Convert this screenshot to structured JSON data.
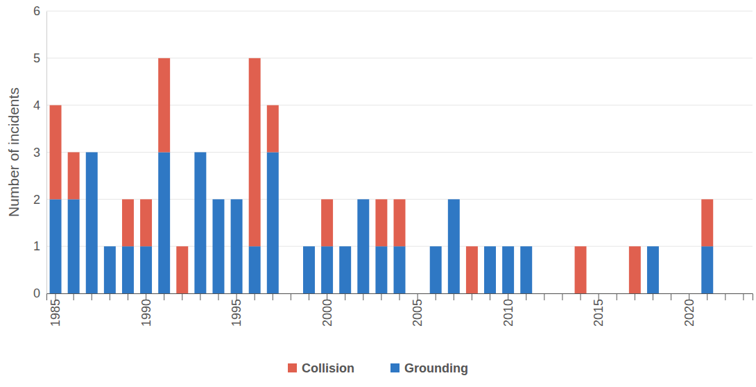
{
  "chart_data": {
    "type": "bar",
    "stacked": true,
    "grid": true,
    "legend": "bottom",
    "y_label": "Number of incidents",
    "categories": [
      1985,
      null,
      null,
      null,
      null,
      1990,
      null,
      null,
      null,
      null,
      1995,
      null,
      null,
      null,
      null,
      2000,
      null,
      null,
      null,
      null,
      2005,
      null,
      null,
      null,
      null,
      2010,
      null,
      null,
      null,
      null,
      2015,
      null,
      null,
      null,
      null,
      2020,
      null,
      null,
      null
    ],
    "series": [
      {
        "name": "Grounding",
        "color": "#2f78c4",
        "values": [
          2,
          2,
          3,
          1,
          1,
          1,
          3,
          0,
          3,
          2,
          2,
          1,
          3,
          0,
          1,
          1,
          1,
          2,
          1,
          1,
          0,
          1,
          2,
          0,
          1,
          1,
          1,
          0,
          0,
          0,
          0,
          0,
          0,
          1,
          0,
          0,
          1,
          0,
          0
        ]
      },
      {
        "name": "Collision",
        "color": "#e0604f",
        "values": [
          2,
          1,
          0,
          0,
          1,
          1,
          2,
          1,
          0,
          0,
          0,
          4,
          1,
          0,
          0,
          1,
          0,
          0,
          1,
          1,
          0,
          0,
          0,
          1,
          0,
          0,
          0,
          0,
          0,
          1,
          0,
          0,
          1,
          0,
          0,
          0,
          1,
          0,
          0
        ]
      }
    ],
    "ylim": [
      0,
      6
    ],
    "yticks": [
      0,
      1,
      2,
      3,
      4,
      5,
      6
    ]
  }
}
